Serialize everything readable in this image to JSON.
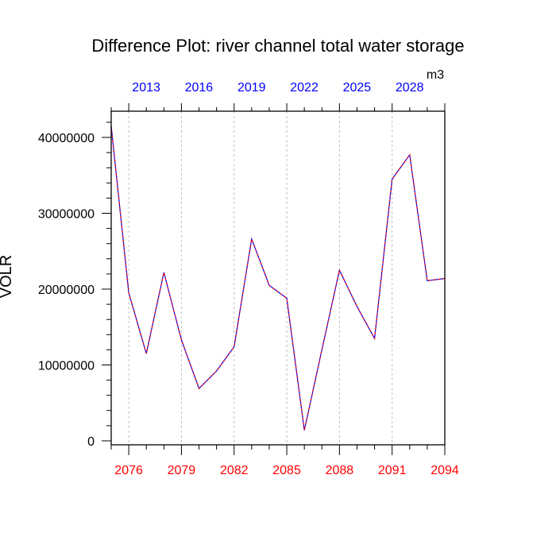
{
  "chart_data": {
    "type": "line",
    "title": "Difference Plot: river channel total water storage",
    "ylabel": "VOLR",
    "units": "m3",
    "xlim": [
      2075,
      2094
    ],
    "ylim": [
      0,
      42000000
    ],
    "x": [
      2075,
      2076,
      2077,
      2078,
      2079,
      2080,
      2081,
      2082,
      2083,
      2084,
      2085,
      2086,
      2087,
      2088,
      2089,
      2090,
      2091,
      2092,
      2093,
      2094
    ],
    "series": [
      {
        "values": [
          41500000,
          19500000,
          11500000,
          22200000,
          13300000,
          6900000,
          9200000,
          12400000,
          26600000,
          20500000,
          18800000,
          1400000,
          12000000,
          22500000,
          17700000,
          13500000,
          34500000,
          37700000,
          21100000,
          21400000
        ],
        "color": "#0000ff",
        "dash_color": "#ff0000"
      }
    ],
    "bottom_ticks": [
      2076,
      2079,
      2082,
      2085,
      2088,
      2091,
      2094
    ],
    "bottom_tick_labels": [
      "2076",
      "2079",
      "2082",
      "2085",
      "2088",
      "2091",
      "2094"
    ],
    "bottom_tick_color": "#ff0000",
    "top_tick_labels": [
      "2013",
      "2016",
      "2019",
      "2022",
      "2025",
      "2028"
    ],
    "top_tick_color": "#0000ff",
    "y_ticks": [
      0,
      10000000,
      20000000,
      30000000,
      40000000
    ],
    "y_tick_labels": [
      "0",
      "10000000",
      "20000000",
      "30000000",
      "40000000"
    ],
    "vertical_dashed_grid": true,
    "grid_color": "#c0c0c0"
  }
}
